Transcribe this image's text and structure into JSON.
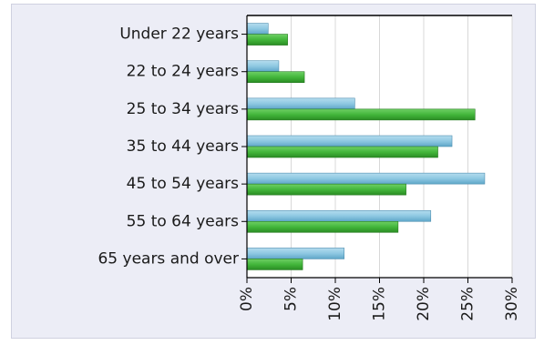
{
  "chart_data": {
    "type": "bar",
    "orientation": "horizontal",
    "categories": [
      "Under 22 years",
      "22 to 24 years",
      "25 to 34 years",
      "35 to 44 years",
      "45 to 54 years",
      "55 to 64 years",
      "65 years and over"
    ],
    "series": [
      {
        "color": "#8ec8e2",
        "values": [
          2.4,
          3.6,
          12.2,
          23.2,
          26.9,
          20.8,
          11.0
        ]
      },
      {
        "color": "#43b63b",
        "values": [
          4.6,
          6.5,
          25.8,
          21.6,
          18.0,
          17.1,
          6.3
        ]
      }
    ],
    "xlim": [
      0,
      30
    ],
    "xticks": [
      "0%",
      "5%",
      "10%",
      "15%",
      "20%",
      "25%",
      "30%"
    ],
    "xtick_values": [
      0,
      5,
      10,
      15,
      20,
      25,
      30
    ],
    "grid": true,
    "title": "",
    "xlabel": "",
    "ylabel": ""
  }
}
